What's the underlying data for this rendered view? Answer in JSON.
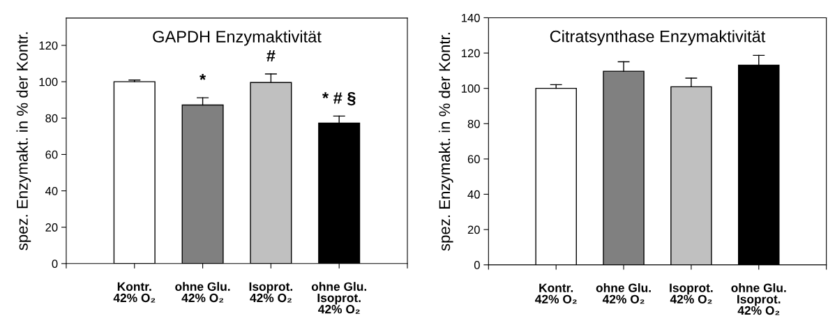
{
  "chart_data": [
    {
      "type": "bar",
      "title": "GAPDH Enzymaktivität",
      "ylabel": "spez. Enzymakt. in % der Kontr.",
      "categories": [
        "Kontr.\n42% O₂",
        "ohne Glu.\n42% O₂",
        "Isoprot.\n42% O₂",
        "ohne Glu.\nIsoprot.\n42% O₂"
      ],
      "values": [
        100,
        87.2,
        99.6,
        77.3
      ],
      "colors": [
        "#ffffff",
        "#808080",
        "#c0c0c0",
        "#000000"
      ],
      "errors": [
        [
          100,
          100.9
        ],
        [
          87.2,
          91.2
        ],
        [
          99.6,
          104.3
        ],
        [
          77.3,
          81.1
        ]
      ],
      "ylim": [
        0,
        135
      ],
      "yticks": [
        0,
        20,
        40,
        60,
        80,
        100,
        120
      ],
      "grid": false,
      "annotations": [
        "*",
        "#",
        "* # §"
      ]
    },
    {
      "type": "bar",
      "title": "Citratsynthase Enzymaktivität",
      "ylabel": "spez. Enzymakt. in % der Kontr.",
      "categories": [
        "Kontr.\n42% O₂",
        "ohne Glu.\n42% O₂",
        "Isoprot.\n42% O₂",
        "ohne Glu.\nIsoprot.\n42% O₂"
      ],
      "values": [
        100,
        109.7,
        100.9,
        113.1
      ],
      "colors": [
        "#ffffff",
        "#808080",
        "#c0c0c0",
        "#000000"
      ],
      "errors": [
        [
          100,
          102.1
        ],
        [
          109.7,
          115.1
        ],
        [
          100.9,
          105.8
        ],
        [
          113.1,
          118.7
        ]
      ],
      "ylim": [
        0,
        140
      ],
      "yticks": [
        0,
        20,
        40,
        60,
        80,
        100,
        120,
        140
      ],
      "grid": false
    }
  ]
}
